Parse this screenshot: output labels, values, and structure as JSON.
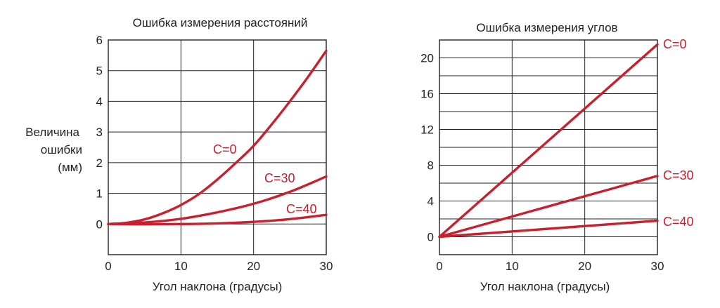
{
  "colors": {
    "series": "#c8202f",
    "text": "#222222",
    "grid": "#222222"
  },
  "chart_data": [
    {
      "type": "line",
      "title": "Ошибка измерения расстояний",
      "xlabel": "Угол наклона (градусы)",
      "ylabel_lines": [
        "Величина",
        "ошибки",
        "(мм)"
      ],
      "xlim": [
        0,
        30
      ],
      "ylim": [
        -1,
        6
      ],
      "xticks": [
        0,
        10,
        20,
        30
      ],
      "yticks": [
        0,
        1,
        2,
        3,
        4,
        5,
        6
      ],
      "grid": true,
      "series": [
        {
          "name": "C=0",
          "x": [
            0,
            2.5,
            5,
            7.5,
            10,
            12.5,
            15,
            17.5,
            20,
            22.5,
            25,
            27.5,
            30
          ],
          "y": [
            0,
            0.04,
            0.15,
            0.35,
            0.62,
            0.98,
            1.45,
            1.98,
            2.55,
            3.25,
            4.0,
            4.8,
            5.65
          ]
        },
        {
          "name": "C=30",
          "x": [
            0,
            5,
            10,
            15,
            20,
            25,
            30
          ],
          "y": [
            0,
            0.05,
            0.17,
            0.38,
            0.66,
            1.05,
            1.55
          ]
        },
        {
          "name": "C=40",
          "x": [
            0,
            5,
            10,
            15,
            20,
            25,
            30
          ],
          "y": [
            0,
            -0.01,
            0.0,
            0.02,
            0.07,
            0.16,
            0.3
          ]
        }
      ]
    },
    {
      "type": "line",
      "title": "Ошибка измерения углов",
      "xlabel": "Угол наклона (градусы)",
      "xlim": [
        0,
        30
      ],
      "ylim": [
        -2,
        22
      ],
      "xticks": [
        0,
        10,
        20,
        30
      ],
      "yticks": [
        0,
        4,
        8,
        12,
        16,
        20
      ],
      "grid": true,
      "series": [
        {
          "name": "C=0",
          "x": [
            0,
            30
          ],
          "y": [
            0,
            21.5
          ]
        },
        {
          "name": "C=30",
          "x": [
            0,
            30
          ],
          "y": [
            0,
            6.8
          ]
        },
        {
          "name": "C=40",
          "x": [
            0,
            30
          ],
          "y": [
            0,
            1.8
          ]
        }
      ]
    }
  ]
}
